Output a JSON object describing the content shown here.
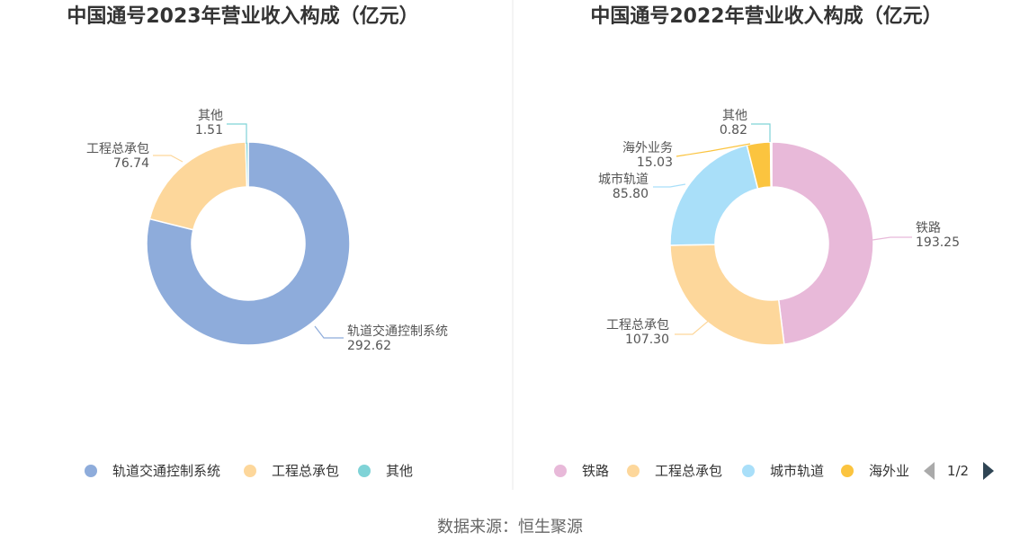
{
  "chart_data": [
    {
      "type": "pie",
      "title": "中国通号2023年营业收入构成（亿元）",
      "categories": [
        "轨道交通控制系统",
        "工程总承包",
        "其他"
      ],
      "values": [
        292.62,
        76.74,
        1.51
      ],
      "value_labels": [
        "292.62",
        "76.74",
        "1.51"
      ],
      "colors": [
        "#8eacdb",
        "#fdd79b",
        "#7fd3d7"
      ],
      "legend": {
        "position": "bottom",
        "items": [
          "轨道交通控制系统",
          "工程总承包",
          "其他"
        ]
      }
    },
    {
      "type": "pie",
      "title": "中国通号2022年营业收入构成（亿元）",
      "categories": [
        "铁路",
        "工程总承包",
        "城市轨道",
        "海外业务",
        "其他"
      ],
      "values": [
        193.25,
        107.3,
        85.8,
        15.03,
        0.82
      ],
      "value_labels": [
        "193.25",
        "107.30",
        "85.80",
        "15.03",
        "0.82"
      ],
      "colors": [
        "#e8b9d9",
        "#fdd79b",
        "#a9dff9",
        "#fbc43f",
        "#7fd3d7"
      ],
      "legend": {
        "position": "bottom",
        "items": [
          "铁路",
          "工程总承包",
          "城市轨道",
          "海外业"
        ],
        "page": "1/2"
      }
    }
  ],
  "source": "数据来源：恒生聚源"
}
